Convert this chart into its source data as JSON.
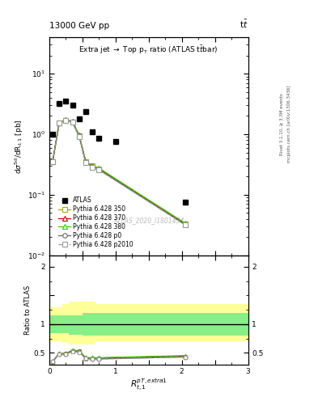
{
  "header_left": "13000 GeV pp",
  "header_right": "t$\\bar{t}$",
  "watermark": "ATLAS_2020_I1801434",
  "right_label_top": "Rivet 3.1.10, ≥ 3.3M events",
  "right_label_bot": "mcplots.cern.ch [arXiv:1306.3436]",
  "ylabel_main": "d$\\sigma^{5d}$/dR$_{t,1}$ [pb]",
  "ylabel_ratio": "Ratio to ATLAS",
  "xlabel": "$R_{t,1}^{pT,extra1}$",
  "xlim": [
    0,
    3
  ],
  "ylim_main": [
    0.01,
    40
  ],
  "ylim_ratio": [
    0.3,
    2.2
  ],
  "atlas_x": [
    0.05,
    0.15,
    0.25,
    0.35,
    0.45,
    0.55,
    0.65,
    0.75,
    1.0,
    2.05
  ],
  "atlas_y": [
    1.0,
    3.2,
    3.5,
    3.0,
    1.8,
    2.4,
    1.1,
    0.85,
    0.75,
    0.075
  ],
  "mc_x": [
    0.05,
    0.15,
    0.25,
    0.35,
    0.45,
    0.55,
    0.65,
    0.75,
    2.05
  ],
  "py350_y": [
    0.35,
    1.55,
    1.7,
    1.6,
    0.95,
    0.35,
    0.3,
    0.27,
    0.033
  ],
  "py370_y": [
    0.35,
    1.55,
    1.72,
    1.62,
    0.96,
    0.35,
    0.3,
    0.27,
    0.033
  ],
  "py380_y": [
    0.35,
    1.55,
    1.73,
    1.63,
    0.97,
    0.355,
    0.305,
    0.275,
    0.034
  ],
  "pyp0_y": [
    0.35,
    1.53,
    1.68,
    1.58,
    0.93,
    0.34,
    0.29,
    0.26,
    0.032
  ],
  "pyp2010_y": [
    0.35,
    1.52,
    1.67,
    1.57,
    0.92,
    0.34,
    0.285,
    0.255,
    0.032
  ],
  "ratio_350": [
    0.35,
    0.484,
    0.486,
    0.533,
    0.528,
    0.412,
    0.41,
    0.41,
    0.44
  ],
  "ratio_370": [
    0.35,
    0.485,
    0.491,
    0.54,
    0.533,
    0.412,
    0.41,
    0.41,
    0.44
  ],
  "ratio_380": [
    0.35,
    0.485,
    0.494,
    0.543,
    0.539,
    0.418,
    0.415,
    0.415,
    0.453
  ],
  "ratio_p0": [
    0.35,
    0.479,
    0.48,
    0.527,
    0.517,
    0.4,
    0.395,
    0.395,
    0.427
  ],
  "ratio_p2010": [
    0.35,
    0.476,
    0.477,
    0.523,
    0.511,
    0.4,
    0.39,
    0.39,
    0.427
  ],
  "band_x_edges": [
    0.0,
    0.1,
    0.2,
    0.3,
    0.5,
    0.7,
    2.1,
    3.0
  ],
  "band_green_lo": [
    0.85,
    0.85,
    0.85,
    0.82,
    0.8,
    0.8,
    0.8,
    0.8
  ],
  "band_green_hi": [
    1.15,
    1.15,
    1.15,
    1.15,
    1.2,
    1.2,
    1.2,
    1.2
  ],
  "band_yellow_lo": [
    0.7,
    0.7,
    0.68,
    0.65,
    0.65,
    0.7,
    0.7,
    0.7
  ],
  "band_yellow_hi": [
    1.3,
    1.3,
    1.35,
    1.4,
    1.4,
    1.35,
    1.35,
    1.35
  ],
  "color_350": "#aaaa00",
  "color_370": "#cc0000",
  "color_380": "#33cc00",
  "color_p0": "#666666",
  "color_p2010": "#999999",
  "color_atlas": "#000000"
}
